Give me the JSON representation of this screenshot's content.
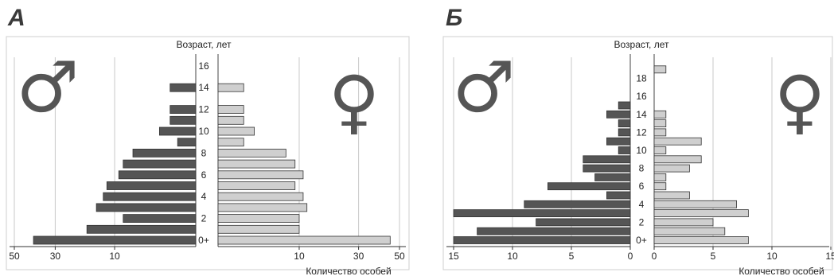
{
  "chart_data": [
    {
      "type": "bar",
      "panel_label": "А",
      "title": "Возраст, лет",
      "xlabel": "Количество особей",
      "x_ticks_left": [
        "50",
        "30",
        "10"
      ],
      "x_ticks_right": [
        "10",
        "30",
        "50"
      ],
      "y_tick_labels": [
        "0+",
        "2",
        "4",
        "6",
        "8",
        "10",
        "12",
        "14",
        "16"
      ],
      "age_classes": [
        0,
        1,
        2,
        3,
        4,
        5,
        6,
        7,
        8,
        9,
        10,
        11,
        12,
        13,
        14,
        15,
        16
      ],
      "x_scale": "sqrt",
      "xlim": [
        0,
        50
      ],
      "series": [
        {
          "name": "♂",
          "side": "left",
          "color": "#555555",
          "values": [
            40,
            18,
            8,
            15,
            13,
            12,
            9,
            8,
            6,
            0.5,
            2,
            1,
            1,
            0,
            1,
            0,
            0
          ]
        },
        {
          "name": "♀",
          "side": "right",
          "color": "#cfcfcf",
          "values": [
            45,
            10,
            10,
            12,
            11,
            9,
            11,
            9,
            7,
            1,
            2,
            1,
            1,
            0,
            1,
            0,
            0
          ]
        }
      ],
      "symbols": {
        "male": "♂",
        "female": "♀"
      }
    },
    {
      "type": "bar",
      "panel_label": "Б",
      "title": "Возраст, лет",
      "xlabel": "Количество особей",
      "x_ticks_left": [
        "15",
        "10",
        "5",
        "0"
      ],
      "x_ticks_right": [
        "0",
        "5",
        "10",
        "15"
      ],
      "y_tick_labels": [
        "0+",
        "2",
        "4",
        "6",
        "8",
        "10",
        "12",
        "14",
        "16",
        "18"
      ],
      "age_classes": [
        0,
        1,
        2,
        3,
        4,
        5,
        6,
        7,
        8,
        9,
        10,
        11,
        12,
        13,
        14,
        15,
        16,
        17,
        18,
        19
      ],
      "x_scale": "linear",
      "xlim": [
        0,
        15
      ],
      "series": [
        {
          "name": "♂",
          "side": "left",
          "color": "#555555",
          "values": [
            15,
            13,
            8,
            15,
            9,
            2,
            7,
            3,
            4,
            4,
            1,
            2,
            1,
            1,
            2,
            1,
            0,
            0,
            0,
            0
          ]
        },
        {
          "name": "♀",
          "side": "right",
          "color": "#cfcfcf",
          "values": [
            8,
            6,
            5,
            8,
            7,
            3,
            1,
            1,
            3,
            4,
            1,
            4,
            1,
            1,
            1,
            0,
            0,
            0,
            0,
            1
          ]
        }
      ],
      "symbols": {
        "male": "♂",
        "female": "♀"
      }
    }
  ]
}
